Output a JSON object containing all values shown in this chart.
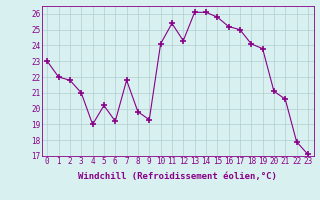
{
  "x": [
    0,
    1,
    2,
    3,
    4,
    5,
    6,
    7,
    8,
    9,
    10,
    11,
    12,
    13,
    14,
    15,
    16,
    17,
    18,
    19,
    20,
    21,
    22,
    23
  ],
  "y": [
    23,
    22,
    21.8,
    21,
    19,
    20.2,
    19.2,
    21.8,
    19.8,
    19.3,
    24.1,
    25.4,
    24.3,
    26.1,
    26.1,
    25.8,
    25.2,
    25.0,
    24.1,
    23.8,
    21.1,
    20.6,
    17.9,
    17.1
  ],
  "line_color": "#880088",
  "marker_color": "#880088",
  "bg_color": "#d8f0f0",
  "grid_color": "#b0cece",
  "xlabel": "Windchill (Refroidissement éolien,°C)",
  "xlabel_color": "#880088",
  "xtick_color": "#880088",
  "ytick_color": "#880088",
  "ylim": [
    17,
    26.5
  ],
  "xlim": [
    -0.5,
    23.5
  ],
  "yticks": [
    17,
    18,
    19,
    20,
    21,
    22,
    23,
    24,
    25,
    26
  ],
  "xticks": [
    0,
    1,
    2,
    3,
    4,
    5,
    6,
    7,
    8,
    9,
    10,
    11,
    12,
    13,
    14,
    15,
    16,
    17,
    18,
    19,
    20,
    21,
    22,
    23
  ],
  "spine_color": "#880088",
  "tick_fontsize": 5.5,
  "xlabel_fontsize": 6.5
}
